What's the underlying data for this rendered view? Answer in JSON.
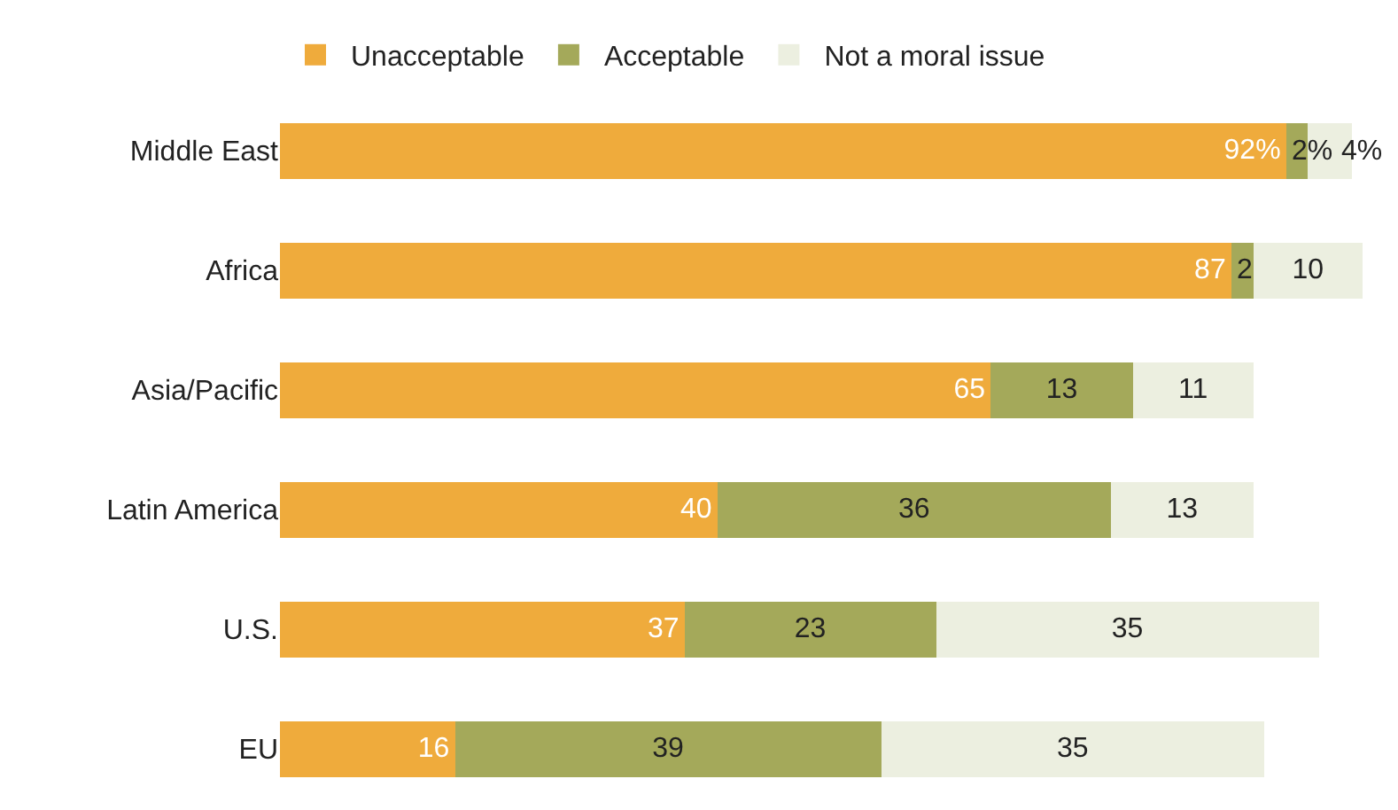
{
  "chart_data": {
    "type": "bar",
    "orientation": "horizontal",
    "stacked": true,
    "categories": [
      "Middle East",
      "Africa",
      "Asia/Pacific",
      "Latin America",
      "U.S.",
      "EU"
    ],
    "series": [
      {
        "name": "Unacceptable",
        "color": "#efab3c",
        "values": [
          92,
          87,
          65,
          40,
          37,
          16
        ],
        "value_labels": [
          "92%",
          "87",
          "65",
          "40",
          "37",
          "16"
        ]
      },
      {
        "name": "Acceptable",
        "color": "#a4a95a",
        "values": [
          2,
          2,
          13,
          36,
          23,
          39
        ],
        "value_labels": [
          "2%",
          "2",
          "13",
          "36",
          "23",
          "39"
        ]
      },
      {
        "name": "Not a moral issue",
        "color": "#ecefe0",
        "values": [
          4,
          10,
          11,
          13,
          35,
          35
        ],
        "value_labels": [
          "4%",
          "10",
          "11",
          "13",
          "35",
          "35"
        ]
      }
    ],
    "tick_labels": "y",
    "legend": "top"
  }
}
